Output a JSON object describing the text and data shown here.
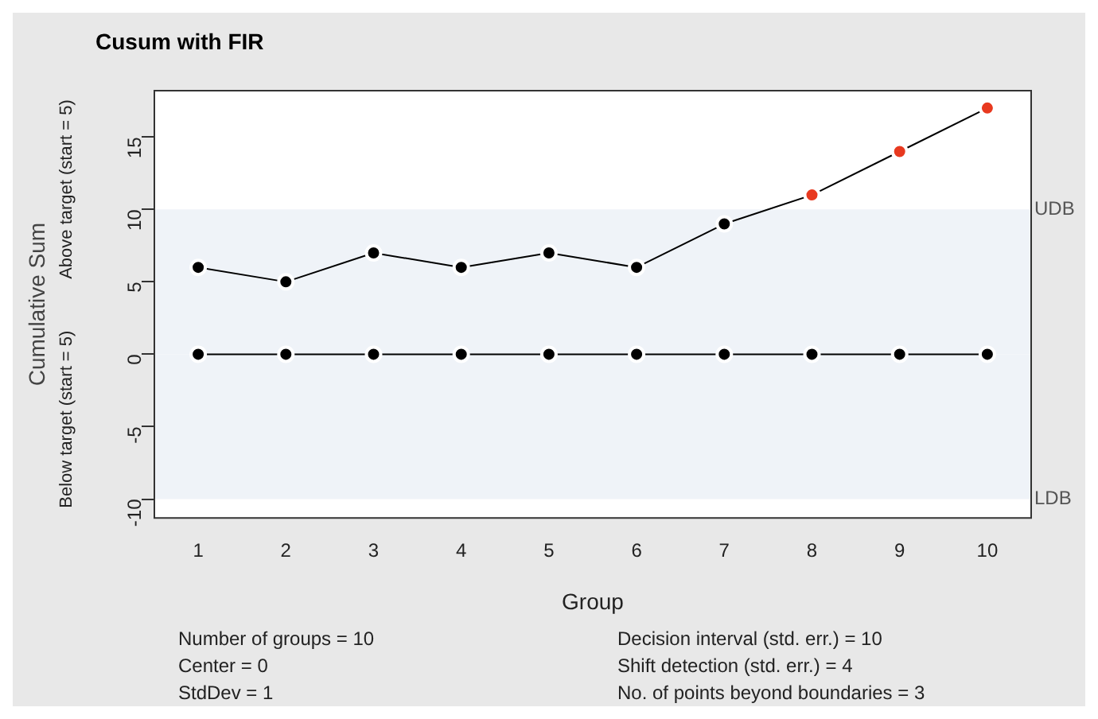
{
  "chart_data": {
    "type": "line",
    "title": "Cusum with FIR",
    "xlabel": "Group",
    "ylabel": "Cumulative Sum",
    "categories": [
      "1",
      "2",
      "3",
      "4",
      "5",
      "6",
      "7",
      "8",
      "9",
      "10"
    ],
    "series": [
      {
        "color": "#000000",
        "colors": [
          "#000000",
          "#000000",
          "#000000",
          "#000000",
          "#000000",
          "#000000",
          "#000000",
          "#e8391f",
          "#e8391f",
          "#e8391f"
        ],
        "values": [
          6,
          5,
          7,
          6,
          7,
          6,
          9,
          11,
          14,
          17
        ]
      },
      {
        "color": "#000000",
        "values": [
          0,
          0,
          0,
          0,
          0,
          0,
          0,
          0,
          0,
          0
        ]
      }
    ],
    "ylim": [
      -11.3,
      18.2
    ],
    "yticks": [
      -10,
      -5,
      0,
      5,
      10,
      15
    ],
    "bands": [
      {
        "axis": "y",
        "from": 0,
        "to": 10,
        "color": "#eff3f8",
        "label": "UDB"
      },
      {
        "axis": "y",
        "from": -10,
        "to": 0,
        "color": "#eff3f8",
        "label": "LDB"
      }
    ],
    "grid": false,
    "legend": false,
    "marker": "circle",
    "line_style": "solid",
    "annotations": [
      "Above target (start = 5)",
      "Below target (start = 5)",
      "Number of groups = 10",
      "Center = 0",
      "StdDev = 1",
      "Decision interval (std. err.) = 10",
      "Shift detection (std. err.) = 4",
      "No. of points beyond boundaries = 3"
    ]
  }
}
